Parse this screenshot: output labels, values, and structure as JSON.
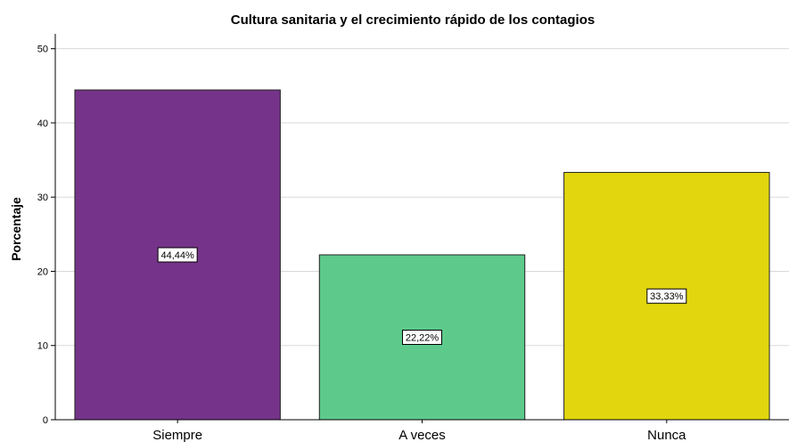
{
  "chart_data": {
    "type": "bar",
    "title": "Cultura sanitaria y el crecimiento rápido de los contagios",
    "xlabel": "",
    "ylabel": "Porcentaje",
    "categories": [
      "Siempre",
      "A veces",
      "Nunca"
    ],
    "values": [
      44.44,
      22.22,
      33.33
    ],
    "data_labels": [
      "44,44%",
      "22,22%",
      "33,33%"
    ],
    "colors": [
      "#753489",
      "#5dca8c",
      "#e2d60f"
    ],
    "ylim": [
      0,
      52
    ],
    "yticks": [
      0,
      10,
      20,
      30,
      40,
      50
    ],
    "grid": true,
    "legend": "none"
  }
}
